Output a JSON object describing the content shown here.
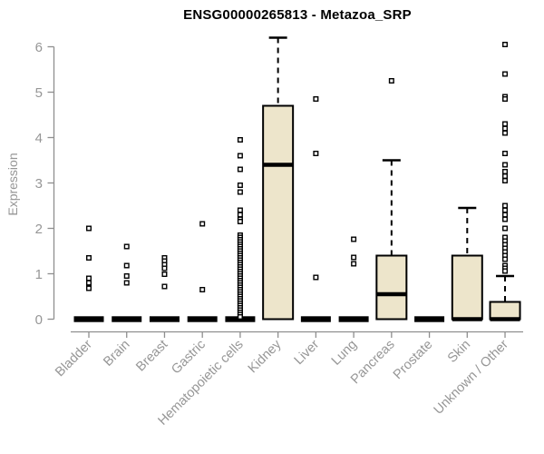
{
  "chart_data": {
    "type": "boxplot",
    "title": "ENSG00000265813 - Metazoa_SRP",
    "ylabel": "Expression",
    "xlabel": "",
    "ylim": [
      0,
      6.3
    ],
    "yticks": [
      0,
      1,
      2,
      3,
      4,
      5,
      6
    ],
    "grid": false,
    "legend": "none",
    "categories": [
      "Bladder",
      "Brain",
      "Breast",
      "Gastric",
      "Hematopoietic cells",
      "Kidney",
      "Liver",
      "Lung",
      "Pancreas",
      "Prostate",
      "Skin",
      "Unknown / Other"
    ],
    "boxes": [
      {
        "category": "Bladder",
        "q1": 0,
        "median": 0,
        "q3": 0,
        "whisker_low": 0,
        "whisker_high": 0,
        "outliers": [
          2.0,
          1.35,
          0.9,
          0.8,
          0.68
        ]
      },
      {
        "category": "Brain",
        "q1": 0,
        "median": 0,
        "q3": 0,
        "whisker_low": 0,
        "whisker_high": 0,
        "outliers": [
          1.6,
          1.18,
          0.95,
          0.8
        ]
      },
      {
        "category": "Breast",
        "q1": 0,
        "median": 0,
        "q3": 0,
        "whisker_low": 0,
        "whisker_high": 0,
        "outliers": [
          1.35,
          1.28,
          1.2,
          1.12,
          0.99,
          0.72
        ]
      },
      {
        "category": "Gastric",
        "q1": 0,
        "median": 0,
        "q3": 0,
        "whisker_low": 0,
        "whisker_high": 0,
        "outliers": [
          2.1,
          0.65
        ]
      },
      {
        "category": "Hematopoietic cells",
        "q1": 0,
        "median": 0,
        "q3": 0,
        "whisker_low": 0,
        "whisker_high": 0,
        "outliers": [
          3.95,
          3.6,
          3.3,
          2.95,
          2.8,
          2.4,
          2.3,
          2.2,
          2.15,
          1.85,
          1.8,
          1.75,
          1.7,
          1.65,
          1.6,
          1.55,
          1.5,
          1.45,
          1.4,
          1.35,
          1.3,
          1.25,
          1.2,
          1.15,
          1.1,
          1.05,
          1.0,
          0.95,
          0.9,
          0.85,
          0.8,
          0.75,
          0.7,
          0.65,
          0.6,
          0.55,
          0.5,
          0.45,
          0.4,
          0.35,
          0.3,
          0.25,
          0.2,
          0.15,
          0.1,
          0.05
        ]
      },
      {
        "category": "Kidney",
        "q1": 0,
        "median": 3.4,
        "q3": 4.7,
        "whisker_low": 0,
        "whisker_high": 6.2,
        "outliers": []
      },
      {
        "category": "Liver",
        "q1": 0,
        "median": 0,
        "q3": 0,
        "whisker_low": 0,
        "whisker_high": 0,
        "outliers": [
          4.85,
          3.65,
          0.92
        ]
      },
      {
        "category": "Lung",
        "q1": 0,
        "median": 0,
        "q3": 0,
        "whisker_low": 0,
        "whisker_high": 0,
        "outliers": [
          1.76,
          1.36,
          1.22
        ]
      },
      {
        "category": "Pancreas",
        "q1": 0,
        "median": 0.55,
        "q3": 1.4,
        "whisker_low": 0,
        "whisker_high": 3.5,
        "outliers": [
          5.25
        ]
      },
      {
        "category": "Prostate",
        "q1": 0,
        "median": 0,
        "q3": 0,
        "whisker_low": 0,
        "whisker_high": 0,
        "outliers": []
      },
      {
        "category": "Skin",
        "q1": 0,
        "median": 0,
        "q3": 1.4,
        "whisker_low": 0,
        "whisker_high": 2.45,
        "outliers": []
      },
      {
        "category": "Unknown / Other",
        "q1": 0,
        "median": 0,
        "q3": 0.38,
        "whisker_low": 0,
        "whisker_high": 0.95,
        "outliers": [
          6.05,
          5.4,
          4.9,
          4.85,
          4.3,
          4.2,
          4.1,
          3.65,
          3.4,
          3.25,
          3.15,
          3.05,
          2.5,
          2.4,
          2.3,
          2.2,
          2.0,
          1.8,
          1.72,
          1.64,
          1.56,
          1.48,
          1.4,
          1.32,
          1.18,
          1.12,
          1.06
        ]
      }
    ],
    "colors": {
      "box_fill": "#ede5cb",
      "box_border": "#000000",
      "median": "#000000",
      "whisker": "#000000",
      "outlier_fill": "#ffffff",
      "outlier_border": "#000000",
      "axis": "#8f8f8f",
      "label": "#969696",
      "title": "#000000",
      "background": "#ffffff"
    }
  }
}
